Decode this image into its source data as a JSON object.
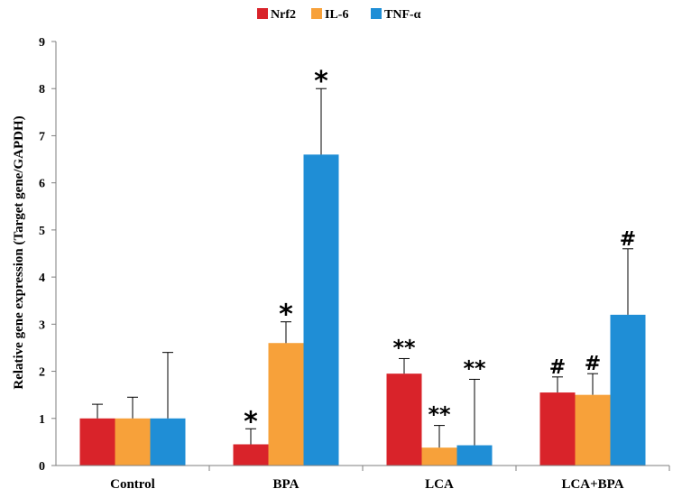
{
  "chart_data": {
    "type": "bar",
    "ylabel": "Relative gene expression (Target gene/GAPDH)",
    "xlabel": "",
    "ylim": [
      0,
      9
    ],
    "yticks": [
      0,
      1,
      2,
      3,
      4,
      5,
      6,
      7,
      8,
      9
    ],
    "grid": false,
    "legend_position": "top-center",
    "categories": [
      "Control",
      "BPA",
      "LCA",
      "LCA+BPA"
    ],
    "series": [
      {
        "name": "Nrf2",
        "color": "#d9232a",
        "values": [
          1.0,
          0.45,
          1.95,
          1.55
        ],
        "error_upper": [
          1.3,
          0.78,
          2.27,
          1.88
        ],
        "annotations": [
          "",
          "*",
          "**",
          "#"
        ]
      },
      {
        "name": "IL-6",
        "color": "#f7a13a",
        "values": [
          1.0,
          2.6,
          0.38,
          1.5
        ],
        "error_upper": [
          1.45,
          3.05,
          0.85,
          1.95
        ],
        "annotations": [
          "",
          "*",
          "**",
          "#"
        ]
      },
      {
        "name": "TNF-α",
        "color": "#1f8ed6",
        "values": [
          1.0,
          6.6,
          0.43,
          3.2
        ],
        "error_upper": [
          2.4,
          8.0,
          1.83,
          4.6
        ],
        "annotations": [
          "",
          "*",
          "**",
          "#"
        ]
      }
    ]
  }
}
